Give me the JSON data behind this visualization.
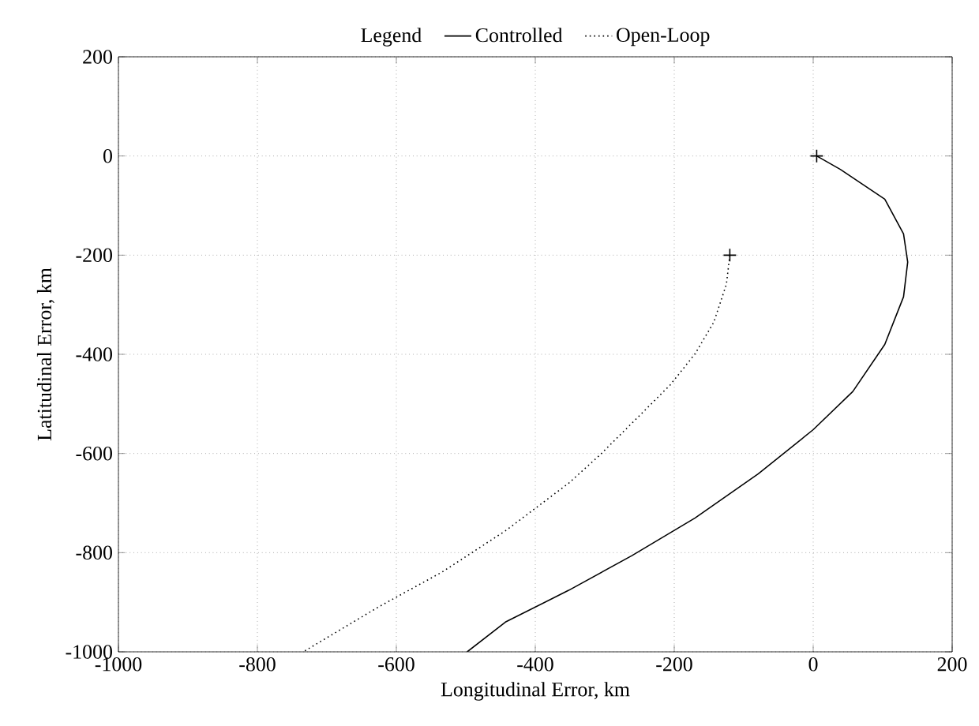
{
  "chart_data": {
    "type": "line",
    "legend_title": "Legend",
    "xlabel": "Longitudinal Error, km",
    "ylabel": "Latitudinal Error, km",
    "xlim": [
      -1000,
      200
    ],
    "ylim": [
      -1000,
      200
    ],
    "xticks": [
      -1000,
      -800,
      -600,
      -400,
      -200,
      0,
      200
    ],
    "yticks": [
      -1000,
      -800,
      -600,
      -400,
      -200,
      0,
      200
    ],
    "grid": true,
    "legend": "top",
    "series": [
      {
        "name": "Controlled",
        "color": "#000000",
        "line_style": "solid",
        "x": [
          5,
          39,
          103,
          130,
          136,
          130,
          103,
          57,
          0,
          -79,
          -170,
          -261,
          -352,
          -443,
          -498
        ],
        "values": [
          0,
          -27,
          -87,
          -157,
          -214,
          -284,
          -380,
          -475,
          -552,
          -641,
          -730,
          -806,
          -876,
          -940,
          -1000
        ]
      },
      {
        "name": "Open-Loop",
        "color": "#000000",
        "line_style": "dotted",
        "x": [
          -120,
          -125,
          -143,
          -170,
          -206,
          -261,
          -307,
          -352,
          -443,
          -534,
          -625,
          -734
        ],
        "values": [
          -200,
          -259,
          -335,
          -399,
          -462,
          -539,
          -603,
          -660,
          -756,
          -839,
          -909,
          -1000
        ]
      },
      {
        "type": "scatter",
        "marker": "cross",
        "color": "#000000",
        "x": [
          5,
          -120
        ],
        "values": [
          0,
          -200
        ]
      }
    ]
  }
}
